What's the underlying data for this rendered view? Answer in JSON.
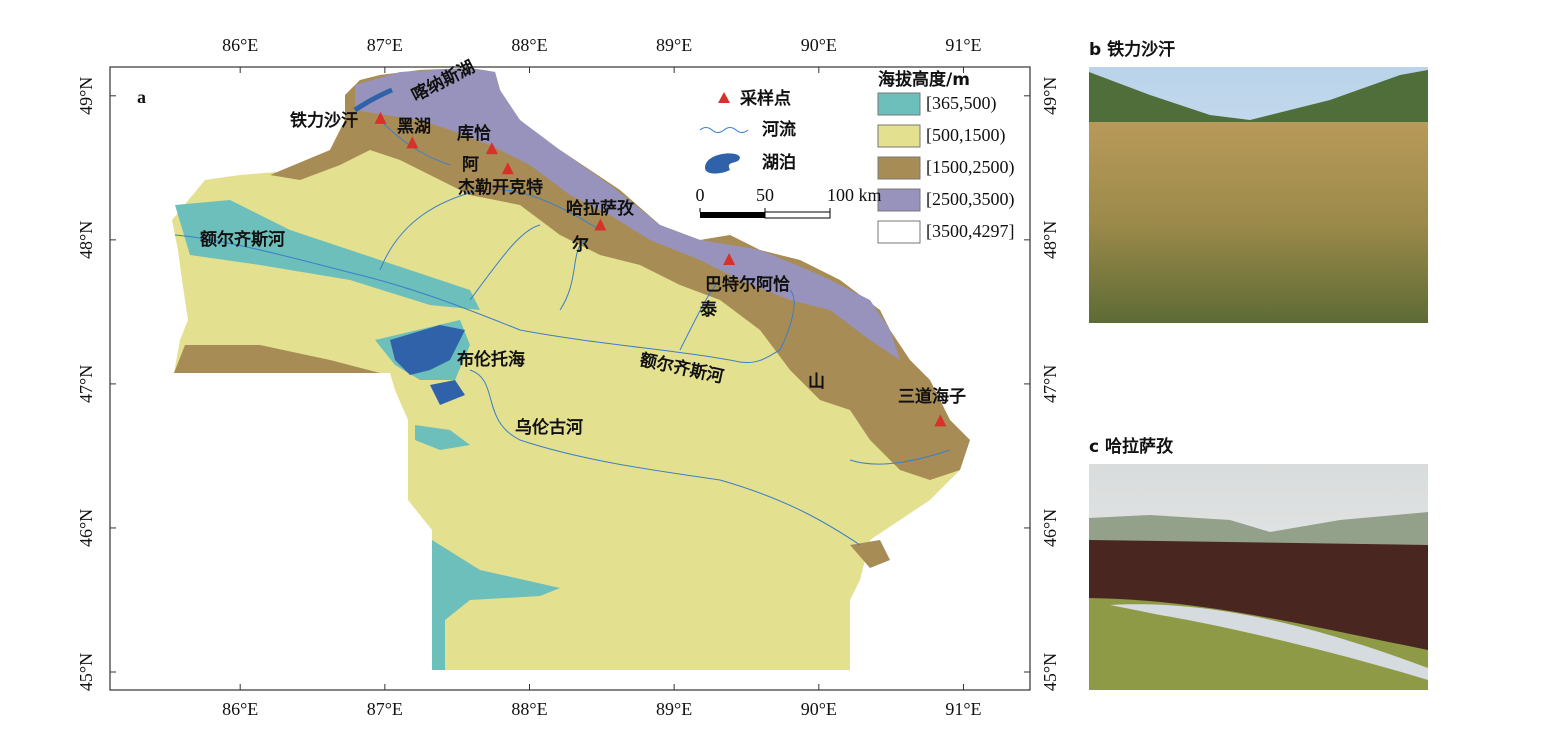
{
  "map": {
    "panel_label": "a",
    "xlim": [
      85.1,
      91.46
    ],
    "ylim": [
      44.875,
      49.2
    ],
    "xticks": [
      {
        "value": 86,
        "label": "86°E"
      },
      {
        "value": 87,
        "label": "87°E"
      },
      {
        "value": 88,
        "label": "88°E"
      },
      {
        "value": 89,
        "label": "89°E"
      },
      {
        "value": 90,
        "label": "90°E"
      },
      {
        "value": 91,
        "label": "91°E"
      }
    ],
    "yticks": [
      {
        "value": 49,
        "label": "49°N"
      },
      {
        "value": 48,
        "label": "48°N"
      },
      {
        "value": 47,
        "label": "47°N"
      },
      {
        "value": 46,
        "label": "46°N"
      },
      {
        "value": 45,
        "label": "45°N"
      }
    ],
    "legend": {
      "title": "海拔高度/m",
      "classes": [
        {
          "label": "[365,500)",
          "color": "#6cbfbb"
        },
        {
          "label": "[500,1500)",
          "color": "#e3e08f"
        },
        {
          "label": "[1500,2500)",
          "color": "#a88c56"
        },
        {
          "label": "[2500,3500)",
          "color": "#9893bd"
        },
        {
          "label": "[3500,4297]",
          "color": "#ffffff"
        }
      ]
    },
    "symbols": [
      "采样点",
      "河流",
      "湖泊"
    ],
    "scale_bar": [
      0,
      50,
      {
        "value": 100,
        "label": "100 km"
      }
    ],
    "sites": [
      {
        "lon": 86.97,
        "lat": 48.84
      },
      {
        "lon": 87.19,
        "lat": 48.67
      },
      {
        "lon": 87.74,
        "lat": 48.63
      },
      {
        "lon": 87.85,
        "lat": 48.49
      },
      {
        "lon": 88.49,
        "lat": 48.1
      },
      {
        "lon": 89.38,
        "lat": 47.86
      },
      {
        "lon": 90.84,
        "lat": 46.74
      }
    ],
    "labels": [
      "喀纳斯湖",
      "铁力沙汗",
      "黑湖",
      "库恰",
      "阿",
      "杰勒开克特",
      "哈拉萨孜",
      "尔",
      "巴特尔阿恰",
      "泰",
      "额尔齐斯河",
      "布伦托海",
      "额尔齐斯河",
      "山",
      "三道海子",
      "乌伦古河"
    ]
  },
  "panels": [
    {
      "label": "b 铁力沙汗"
    },
    {
      "label": "c 哈拉萨孜"
    }
  ]
}
